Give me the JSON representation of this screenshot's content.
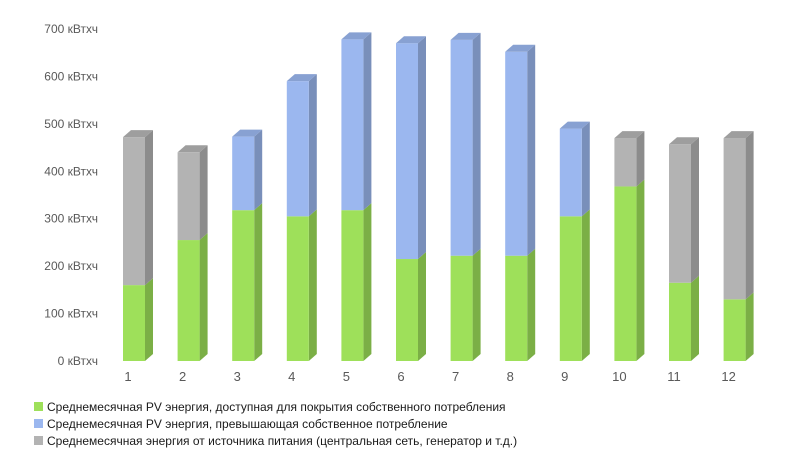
{
  "chart_data": {
    "type": "bar",
    "stacked": true,
    "style": "3d-column",
    "categories": [
      "1",
      "2",
      "3",
      "4",
      "5",
      "6",
      "7",
      "8",
      "9",
      "10",
      "11",
      "12"
    ],
    "series": [
      {
        "name": "Среднемесячная PV энергия, доступная для покрытия собственного потребления",
        "color": "#9ee05a",
        "values": [
          160,
          255,
          318,
          305,
          318,
          215,
          222,
          222,
          305,
          368,
          165,
          130
        ]
      },
      {
        "name": "Среднемесячная PV энергия, превышающая собственное потребление",
        "color": "#9bb7ef",
        "values": [
          0,
          0,
          155,
          285,
          360,
          455,
          455,
          430,
          185,
          0,
          0,
          0
        ]
      },
      {
        "name": "Среднемесячная энергия от источника питания (центральная сеть, генератор и т.д.)",
        "color": "#b3b3b3",
        "values": [
          312,
          185,
          0,
          0,
          0,
          0,
          0,
          0,
          0,
          102,
          292,
          340
        ]
      }
    ],
    "ylim": [
      0,
      700
    ],
    "yticks": [
      0,
      100,
      200,
      300,
      400,
      500,
      600,
      700
    ],
    "ytick_labels": [
      "0 кВтхч",
      "100 кВтхч",
      "200 кВтхч",
      "300 кВтхч",
      "400 кВтхч",
      "500 кВтхч",
      "600 кВтхч",
      "700 кВтхч"
    ],
    "grid": false,
    "legend_position": "bottom-left"
  }
}
